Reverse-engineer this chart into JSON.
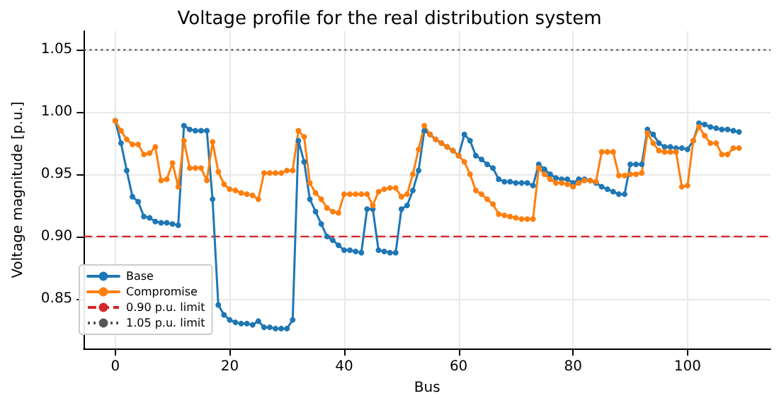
{
  "chart_data": {
    "type": "line",
    "title": "Voltage profile for the real distribution system",
    "xlabel": "Bus",
    "ylabel": "Voltage magnitude [p.u.]",
    "x": [
      0,
      1,
      2,
      3,
      4,
      5,
      6,
      7,
      8,
      9,
      10,
      11,
      12,
      13,
      14,
      15,
      16,
      17,
      18,
      19,
      20,
      21,
      22,
      23,
      24,
      25,
      26,
      27,
      28,
      29,
      30,
      31,
      32,
      33,
      34,
      35,
      36,
      37,
      38,
      39,
      40,
      41,
      42,
      43,
      44,
      45,
      46,
      47,
      48,
      49,
      50,
      51,
      52,
      53,
      54,
      55,
      56,
      57,
      58,
      59,
      60,
      61,
      62,
      63,
      64,
      65,
      66,
      67,
      68,
      69,
      70,
      71,
      72,
      73,
      74,
      75,
      76,
      77,
      78,
      79,
      80,
      81,
      82,
      83,
      84,
      85,
      86,
      87,
      88,
      89,
      90,
      91,
      92,
      93,
      94,
      95,
      96,
      97,
      98,
      99,
      100,
      101,
      102,
      103,
      104,
      105,
      106,
      107,
      108,
      109
    ],
    "series": [
      {
        "name": "Base",
        "color": "#1f77b4",
        "values": [
          0.993,
          0.975,
          0.953,
          0.932,
          0.928,
          0.916,
          0.915,
          0.912,
          0.911,
          0.911,
          0.91,
          0.909,
          0.989,
          0.986,
          0.985,
          0.985,
          0.985,
          0.93,
          0.845,
          0.837,
          0.833,
          0.831,
          0.83,
          0.83,
          0.829,
          0.832,
          0.827,
          0.827,
          0.826,
          0.826,
          0.826,
          0.833,
          0.977,
          0.96,
          0.93,
          0.92,
          0.91,
          0.9,
          0.897,
          0.893,
          0.889,
          0.889,
          0.888,
          0.887,
          0.922,
          0.922,
          0.889,
          0.888,
          0.887,
          0.887,
          0.922,
          0.925,
          0.937,
          0.953,
          0.985,
          0.982,
          0.978,
          0.975,
          0.972,
          0.969,
          0.965,
          0.982,
          0.977,
          0.965,
          0.962,
          0.958,
          0.955,
          0.946,
          0.944,
          0.944,
          0.943,
          0.943,
          0.943,
          0.941,
          0.958,
          0.954,
          0.95,
          0.947,
          0.946,
          0.946,
          0.943,
          0.946,
          0.946,
          0.945,
          0.943,
          0.94,
          0.938,
          0.936,
          0.934,
          0.934,
          0.958,
          0.958,
          0.958,
          0.986,
          0.982,
          0.975,
          0.972,
          0.972,
          0.971,
          0.971,
          0.97,
          0.977,
          0.991,
          0.99,
          0.988,
          0.987,
          0.986,
          0.986,
          0.985,
          0.984
        ]
      },
      {
        "name": "Compromise",
        "color": "#ff7f0e",
        "values": [
          0.993,
          0.985,
          0.978,
          0.974,
          0.974,
          0.966,
          0.967,
          0.972,
          0.945,
          0.946,
          0.959,
          0.94,
          0.977,
          0.955,
          0.955,
          0.955,
          0.945,
          0.976,
          0.952,
          0.942,
          0.938,
          0.937,
          0.935,
          0.934,
          0.933,
          0.93,
          0.951,
          0.951,
          0.951,
          0.951,
          0.953,
          0.953,
          0.985,
          0.98,
          0.943,
          0.935,
          0.93,
          0.923,
          0.92,
          0.919,
          0.934,
          0.934,
          0.934,
          0.934,
          0.934,
          0.925,
          0.936,
          0.938,
          0.939,
          0.939,
          0.932,
          0.934,
          0.95,
          0.97,
          0.989,
          0.982,
          0.978,
          0.975,
          0.972,
          0.969,
          0.965,
          0.96,
          0.95,
          0.937,
          0.934,
          0.93,
          0.926,
          0.918,
          0.917,
          0.916,
          0.915,
          0.914,
          0.914,
          0.914,
          0.955,
          0.95,
          0.946,
          0.943,
          0.943,
          0.942,
          0.94,
          0.943,
          0.945,
          0.945,
          0.944,
          0.968,
          0.968,
          0.968,
          0.949,
          0.949,
          0.95,
          0.95,
          0.951,
          0.983,
          0.975,
          0.969,
          0.968,
          0.968,
          0.968,
          0.94,
          0.941,
          0.977,
          0.988,
          0.981,
          0.975,
          0.975,
          0.966,
          0.966,
          0.971,
          0.971
        ]
      }
    ],
    "ref_lines": [
      {
        "axis": "y",
        "value": 0.9,
        "label": "0.90 p.u. limit",
        "color": "#d62728",
        "line_style": "dashed"
      },
      {
        "axis": "y",
        "value": 1.05,
        "label": "1.05 p.u. limit",
        "color": "#555555",
        "line_style": "dotted"
      }
    ],
    "xlim": [
      -5.5,
      114.5
    ],
    "xticks": [
      0,
      20,
      40,
      60,
      80,
      100
    ],
    "ylim": [
      0.81,
      1.065
    ],
    "yticks": [
      0.85,
      {
        "value": 0.9,
        "label": "0.90"
      },
      0.95,
      {
        "value": 1.0,
        "label": "1.00"
      },
      1.05
    ],
    "grid": true,
    "legend": "bottom left",
    "marker": "circle",
    "line_style": "solid"
  }
}
